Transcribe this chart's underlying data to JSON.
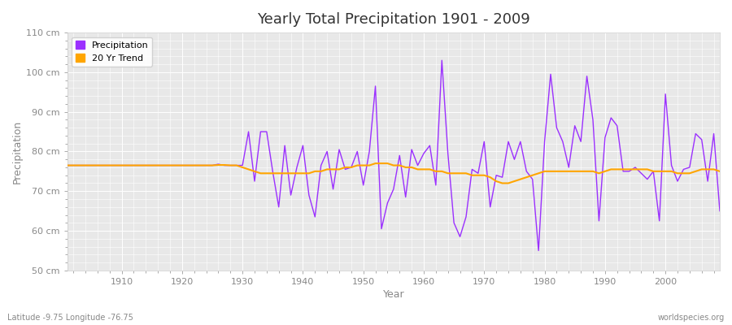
{
  "title": "Yearly Total Precipitation 1901 - 2009",
  "xlabel": "Year",
  "ylabel": "Precipitation",
  "subtitle": "Latitude -9.75 Longitude -76.75",
  "watermark": "worldspecies.org",
  "ylim": [
    50,
    110
  ],
  "yticks": [
    50,
    60,
    70,
    80,
    90,
    100,
    110
  ],
  "ytick_labels": [
    "50 cm",
    "60 cm",
    "70 cm",
    "80 cm",
    "90 cm",
    "100 cm",
    "110 cm"
  ],
  "xlim": [
    1901,
    2009
  ],
  "xticks": [
    1910,
    1920,
    1930,
    1940,
    1950,
    1960,
    1970,
    1980,
    1990,
    2000
  ],
  "precip_color": "#9B30FF",
  "trend_color": "#FFA500",
  "fig_bg_color": "#FFFFFF",
  "plot_bg_color": "#E8E8E8",
  "grid_color": "#FFFFFF",
  "tick_color": "#888888",
  "title_color": "#333333",
  "years": [
    1901,
    1902,
    1903,
    1904,
    1905,
    1906,
    1907,
    1908,
    1909,
    1910,
    1911,
    1912,
    1913,
    1914,
    1915,
    1916,
    1917,
    1918,
    1919,
    1920,
    1921,
    1922,
    1923,
    1924,
    1925,
    1926,
    1927,
    1928,
    1929,
    1930,
    1931,
    1932,
    1933,
    1934,
    1935,
    1936,
    1937,
    1938,
    1939,
    1940,
    1941,
    1942,
    1943,
    1944,
    1945,
    1946,
    1947,
    1948,
    1949,
    1950,
    1951,
    1952,
    1953,
    1954,
    1955,
    1956,
    1957,
    1958,
    1959,
    1960,
    1961,
    1962,
    1963,
    1964,
    1965,
    1966,
    1967,
    1968,
    1969,
    1970,
    1971,
    1972,
    1973,
    1974,
    1975,
    1976,
    1977,
    1978,
    1979,
    1980,
    1981,
    1982,
    1983,
    1984,
    1985,
    1986,
    1987,
    1988,
    1989,
    1990,
    1991,
    1992,
    1993,
    1994,
    1995,
    1996,
    1997,
    1998,
    1999,
    2000,
    2001,
    2002,
    2003,
    2004,
    2005,
    2006,
    2007,
    2008,
    2009
  ],
  "precipitation": [
    76.5,
    76.5,
    76.5,
    76.5,
    76.5,
    76.5,
    76.5,
    76.5,
    76.5,
    76.5,
    76.5,
    76.5,
    76.5,
    76.5,
    76.5,
    76.5,
    76.5,
    76.5,
    76.5,
    76.5,
    76.5,
    76.5,
    76.5,
    76.5,
    76.5,
    76.8,
    76.5,
    76.5,
    76.5,
    76.5,
    85.0,
    72.5,
    85.0,
    85.0,
    75.0,
    66.0,
    81.5,
    69.0,
    76.0,
    81.5,
    69.0,
    63.5,
    76.5,
    80.0,
    70.5,
    80.5,
    75.5,
    76.0,
    80.0,
    71.5,
    80.0,
    96.5,
    60.5,
    67.0,
    70.5,
    79.0,
    68.5,
    80.5,
    76.5,
    79.5,
    81.5,
    71.5,
    103.0,
    79.5,
    62.0,
    58.5,
    63.5,
    75.5,
    74.5,
    82.5,
    66.0,
    74.0,
    73.5,
    82.5,
    78.0,
    82.5,
    75.0,
    73.0,
    55.0,
    82.5,
    99.5,
    86.0,
    82.5,
    76.0,
    86.5,
    82.5,
    99.0,
    88.0,
    62.5,
    83.5,
    88.5,
    86.5,
    75.0,
    75.0,
    76.0,
    74.5,
    73.0,
    75.0,
    62.5,
    94.5,
    76.5,
    72.5,
    75.5,
    76.0,
    84.5,
    83.0,
    72.5,
    84.5,
    65.0
  ],
  "trend": [
    76.5,
    76.5,
    76.5,
    76.5,
    76.5,
    76.5,
    76.5,
    76.5,
    76.5,
    76.5,
    76.5,
    76.5,
    76.5,
    76.5,
    76.5,
    76.5,
    76.5,
    76.5,
    76.5,
    76.5,
    76.5,
    76.5,
    76.5,
    76.5,
    76.5,
    76.6,
    76.6,
    76.5,
    76.5,
    76.0,
    75.5,
    75.0,
    74.5,
    74.5,
    74.5,
    74.5,
    74.5,
    74.5,
    74.5,
    74.5,
    74.5,
    75.0,
    75.0,
    75.5,
    75.5,
    75.5,
    76.0,
    76.0,
    76.5,
    76.5,
    76.5,
    77.0,
    77.0,
    77.0,
    76.5,
    76.5,
    76.0,
    76.0,
    75.5,
    75.5,
    75.5,
    75.0,
    75.0,
    74.5,
    74.5,
    74.5,
    74.5,
    74.0,
    74.0,
    74.0,
    73.5,
    72.5,
    72.0,
    72.0,
    72.5,
    73.0,
    73.5,
    74.0,
    74.5,
    75.0,
    75.0,
    75.0,
    75.0,
    75.0,
    75.0,
    75.0,
    75.0,
    75.0,
    74.5,
    75.0,
    75.5,
    75.5,
    75.5,
    75.5,
    75.5,
    75.5,
    75.5,
    75.0,
    75.0,
    75.0,
    75.0,
    74.5,
    74.5,
    74.5,
    75.0,
    75.5,
    75.5,
    75.5,
    75.0
  ]
}
